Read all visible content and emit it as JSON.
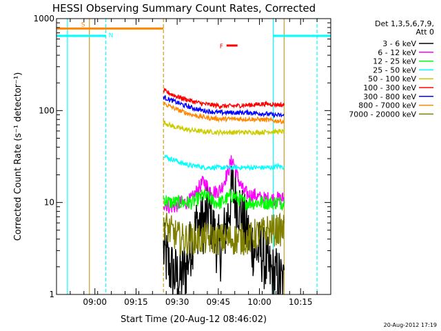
{
  "chart_data": {
    "type": "line",
    "title": "HESSI Observing Summary Count Rates, Corrected",
    "xlabel": "Start Time (20-Aug-12 08:46:02)",
    "ylabel": "Corrected Count Rate (s⁻¹ detector⁻¹)",
    "y_scale": "log",
    "ylim": [
      1,
      1000
    ],
    "y_ticks": [
      1,
      10,
      100,
      1000
    ],
    "y_tick_labels": [
      "1",
      "10",
      "100",
      "1000"
    ],
    "x_range": [
      "08:46",
      "10:26"
    ],
    "x_ticks": [
      "09:00",
      "09:15",
      "09:30",
      "09:45",
      "10:00",
      "10:15"
    ],
    "legend_header": [
      "Det 1,3,5,6,7,9,",
      "Att 0"
    ],
    "legend_position": "right",
    "timestamp": "20-Aug-2012 17:19",
    "data_window": [
      "09:25",
      "10:09"
    ],
    "series": [
      {
        "name": "3 - 6 keV",
        "color": "#000000",
        "values": [
          3,
          2,
          1.6,
          1.5,
          2,
          4,
          6,
          6,
          8,
          4,
          3,
          6,
          14,
          10,
          6,
          4,
          3,
          3,
          2,
          1.6,
          1.5,
          1.2
        ]
      },
      {
        "name": "6 - 12 keV",
        "color": "#ff00ff",
        "values": [
          10,
          9,
          9,
          10,
          10,
          11,
          14,
          17,
          14,
          13,
          14,
          20,
          30,
          18,
          13,
          12,
          12,
          11,
          11,
          11,
          11,
          11
        ]
      },
      {
        "name": "12 - 25 keV",
        "color": "#00ff00",
        "values": [
          11,
          10,
          10,
          10,
          10,
          10,
          11,
          12,
          11,
          10,
          10,
          11,
          12,
          11,
          10,
          10,
          10,
          10,
          10,
          10,
          10,
          10
        ]
      },
      {
        "name": "25 - 50 keV",
        "color": "#00ffff",
        "values": [
          33,
          30,
          29,
          27,
          26,
          25,
          25,
          24,
          24,
          24,
          24,
          24,
          24,
          24,
          24,
          24,
          24,
          24,
          24,
          24,
          25,
          24
        ]
      },
      {
        "name": "50 - 100 keV",
        "color": "#cccc00",
        "values": [
          75,
          70,
          66,
          64,
          62,
          61,
          60,
          59,
          59,
          58,
          58,
          58,
          58,
          58,
          58,
          58,
          58,
          58,
          59,
          59,
          59,
          59
        ]
      },
      {
        "name": "100 - 300 keV",
        "color": "#ff0000",
        "values": [
          165,
          155,
          145,
          138,
          132,
          126,
          122,
          118,
          116,
          114,
          112,
          112,
          112,
          113,
          114,
          115,
          116,
          118,
          118,
          117,
          116,
          115
        ]
      },
      {
        "name": "300 - 800 keV",
        "color": "#0000ff",
        "values": [
          140,
          132,
          125,
          118,
          112,
          107,
          103,
          100,
          98,
          96,
          95,
          95,
          95,
          95,
          95,
          95,
          94,
          93,
          92,
          90,
          89,
          88
        ]
      },
      {
        "name": "800 - 7000 keV",
        "color": "#ff8800",
        "values": [
          120,
          112,
          105,
          99,
          94,
          90,
          87,
          85,
          83,
          82,
          81,
          81,
          81,
          81,
          81,
          81,
          80,
          80,
          79,
          78,
          77,
          76
        ]
      },
      {
        "name": "7000 - 20000 keV",
        "color": "#808000",
        "values": [
          6,
          5,
          4.5,
          4,
          4,
          4,
          4,
          4,
          4,
          4,
          4,
          4,
          4,
          4,
          4,
          4,
          4.5,
          4.5,
          5,
          5,
          5,
          5
        ]
      }
    ],
    "flags": [
      {
        "label": "S",
        "color": "#ff8800",
        "start": "08:46",
        "end": "09:25",
        "level": 780
      },
      {
        "label": "N",
        "color": "#00ffff",
        "start": "08:46",
        "end": "09:04",
        "level": 650
      },
      {
        "label": "N",
        "color": "#00ffff",
        "start": "10:05",
        "end": "10:26",
        "level": 650
      },
      {
        "label": "F",
        "color": "#ff0000",
        "start": "09:48",
        "end": "09:52",
        "level": 510
      }
    ],
    "markers": [
      {
        "time": "08:50",
        "color": "#00ffff",
        "style": "solid"
      },
      {
        "time": "08:58",
        "color": "#cc9922",
        "style": "solid"
      },
      {
        "time": "09:04",
        "color": "#00ffff",
        "style": "dashed"
      },
      {
        "time": "09:25",
        "color": "#cc9922",
        "style": "dashed"
      },
      {
        "time": "10:05",
        "color": "#00ffff",
        "style": "solid"
      },
      {
        "time": "10:09",
        "color": "#cc9922",
        "style": "solid"
      },
      {
        "time": "10:21",
        "color": "#00ffff",
        "style": "dashed"
      }
    ],
    "grid": false
  }
}
